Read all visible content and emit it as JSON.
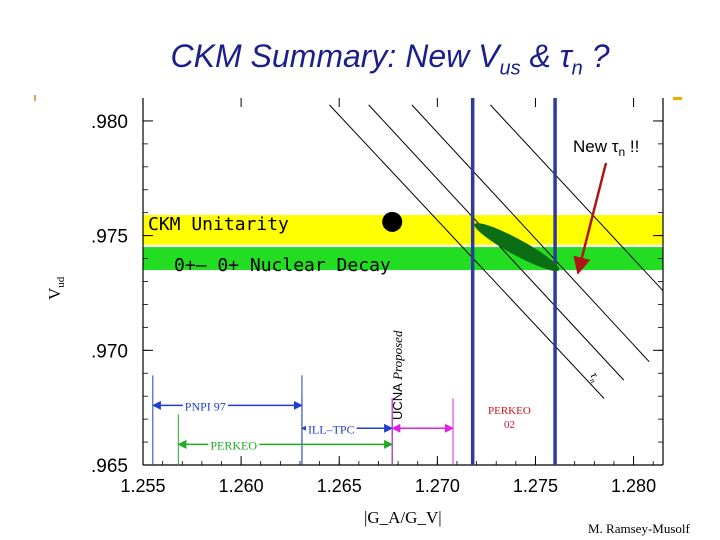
{
  "slide": {
    "title_main": "CKM Summary: New V",
    "title_sub": "us",
    "title_mid": " & τ",
    "title_sub2": "n",
    "title_end": " ?",
    "credit": "M. Ramsey-Musolf"
  },
  "colors": {
    "title": "#1a1f8c",
    "vertical_lines": "#2e3a9c",
    "unitarity_band": "#ffff00",
    "nuclear_band": "#22dd22",
    "ellipse": "#0b6e14",
    "perkeo_text": "#d0101a",
    "pnpi_arrow": "#1f3fd0",
    "ill_arrow": "#1f3fd0",
    "perkeo_arrow": "#22aa22",
    "ucna_arrow": "#e020e0",
    "new_arrow": "#b01515",
    "orange_accent": "#f5a800"
  },
  "chart_data": {
    "type": "scatter",
    "xlabel": "|G_A/G_V|",
    "ylabel": "V_ud",
    "xlim": [
      1.255,
      1.2815
    ],
    "ylim": [
      0.965,
      0.981
    ],
    "x_ticks": [
      "1.255",
      "1.260",
      "1.265",
      "1.270",
      "1.275",
      "1.280"
    ],
    "x_tick_values": [
      1.255,
      1.26,
      1.265,
      1.27,
      1.275,
      1.28
    ],
    "y_ticks": [
      ".980",
      ".975",
      ".970",
      ".965"
    ],
    "y_tick_values": [
      0.98,
      0.975,
      0.97,
      0.965
    ],
    "bands": [
      {
        "label": "CKM Unitarity",
        "y_low": 0.9746,
        "y_high": 0.9759
      },
      {
        "label": "0+– 0+ Nuclear Decay",
        "y_low": 0.9735,
        "y_high": 0.9745
      }
    ],
    "vertical_lines": [
      1.2718,
      1.276
    ],
    "diagonal_lines": [
      {
        "from": [
          1.2645,
          0.9807
        ],
        "to": [
          1.2785,
          0.9679
        ]
      },
      {
        "from": [
          1.2665,
          0.9807
        ],
        "to": [
          1.2795,
          0.9687
        ]
      },
      {
        "from": [
          1.2687,
          0.9807
        ],
        "to": [
          1.2808,
          0.9695
        ]
      },
      {
        "from": [
          1.2727,
          0.9807
        ],
        "to": [
          1.2815,
          0.9726
        ]
      }
    ],
    "point": {
      "x": 1.2677,
      "y": 0.9756
    },
    "ellipse": {
      "x1": 1.2719,
      "y1": 0.9755,
      "x2": 1.2762,
      "y2": 0.9735
    },
    "tau_label": "τ",
    "tau_sub": "n",
    "annotations": [
      {
        "id": "new",
        "text": "New τn !!",
        "main": "New τ",
        "sub": "n",
        "tail": " !!"
      },
      {
        "id": "ucna",
        "text": "UCNA Proposed",
        "part1": "UCNA",
        "part2": " Proposed"
      },
      {
        "id": "perkeo02",
        "line1": "PERKEO",
        "line2": "02"
      }
    ],
    "ranges": [
      {
        "label": "PNPI 97",
        "x_from": 1.2555,
        "x_to": 1.2631,
        "y": 0.9676
      },
      {
        "label": "ILL–TPC",
        "x_from": 1.2631,
        "x_to": 1.2677,
        "y": 0.9666
      },
      {
        "label": "PERKEO",
        "x_from": 1.2568,
        "x_to": 1.2677,
        "y": 0.9659
      },
      {
        "label": "",
        "x_from": 1.2677,
        "x_to": 1.2708,
        "y": 0.9666
      }
    ]
  }
}
